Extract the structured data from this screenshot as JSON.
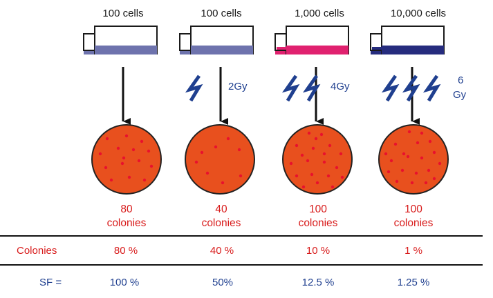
{
  "colors": {
    "arrow": "#111111",
    "bolt": "#1f3f8f",
    "dish_fill": "#e8501e",
    "dish_stroke": "#222222",
    "colony": "#e8112d",
    "red_text": "#d81b1b",
    "blue_text": "#1f3f8f"
  },
  "columns": [
    {
      "cells_label": "100 cells",
      "medium_color": "#6e73ad",
      "dose_label": "",
      "bolts": 0,
      "result_count": "80",
      "result_unit": "colonies",
      "colonies_pct": "80 %",
      "sf": "100 %"
    },
    {
      "cells_label": "100 cells",
      "medium_color": "#6e73ad",
      "dose_label": "2Gy",
      "bolts": 1,
      "result_count": "40",
      "result_unit": "colonies",
      "colonies_pct": "40 %",
      "sf": "50%"
    },
    {
      "cells_label": "1,000 cells",
      "medium_color": "#e0216f",
      "dose_label": "4Gy",
      "bolts": 2,
      "result_count": "100",
      "result_unit": "colonies",
      "colonies_pct": "10 %",
      "sf": "12.5 %"
    },
    {
      "cells_label": "10,000 cells",
      "medium_color": "#262c7e",
      "dose_label": "6 Gy",
      "dose_line1": "6",
      "dose_line2": "Gy",
      "bolts": 3,
      "result_count": "100",
      "result_unit": "colonies",
      "colonies_pct": "1 %",
      "sf": "1.25 %"
    }
  ],
  "table": {
    "colonies_label": "Colonies",
    "sf_label": "SF ="
  }
}
